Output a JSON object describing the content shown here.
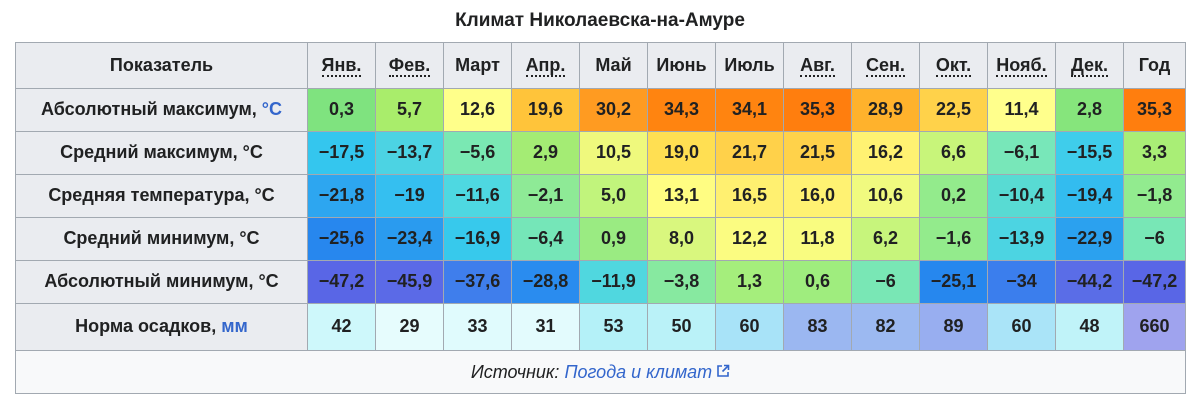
{
  "caption": "Климат Николаевска-на-Амуре",
  "header": {
    "indicator": "Показатель",
    "months": [
      "Янв.",
      "Фев.",
      "Март",
      "Апр.",
      "Май",
      "Июнь",
      "Июль",
      "Авг.",
      "Сен.",
      "Окт.",
      "Нояб.",
      "Дек."
    ],
    "year": "Год"
  },
  "rows": [
    {
      "label": "Абсолютный максимум,",
      "unit": "°C",
      "values": [
        "0,3",
        "5,7",
        "12,6",
        "19,6",
        "30,2",
        "34,3",
        "34,1",
        "35,3",
        "28,9",
        "22,5",
        "11,4",
        "2,8"
      ],
      "year": "35,3",
      "colors": [
        "#7fe37f",
        "#a9ed6b",
        "#ffff8a",
        "#ffc43a",
        "#ff9b21",
        "#ff8410",
        "#ff8410",
        "#ff7e0e",
        "#ffb22c",
        "#ffd24a",
        "#ffff8c",
        "#86e57c"
      ],
      "year_color": "#ff7e0e"
    },
    {
      "label": "Средний максимум, °C",
      "unit": "",
      "values": [
        "−17,5",
        "−13,7",
        "−5,6",
        "2,9",
        "10,5",
        "19,0",
        "21,7",
        "21,5",
        "16,2",
        "6,6",
        "−6,1",
        "−15,5"
      ],
      "year": "3,3",
      "colors": [
        "#34c6ee",
        "#4cd3e3",
        "#7ae8b3",
        "#a4ec74",
        "#eff97d",
        "#ffdf52",
        "#ffd14a",
        "#ffd24a",
        "#fff272",
        "#c8f57a",
        "#78e7b9",
        "#3fcdeb"
      ],
      "year_color": "#a9ee76"
    },
    {
      "label": "Средняя температура, °C",
      "unit": "",
      "values": [
        "−21,8",
        "−19",
        "−11,6",
        "−2,1",
        "5,0",
        "13,1",
        "16,5",
        "16,0",
        "10,6",
        "0,2",
        "−10,4",
        "−19,4"
      ],
      "year": "−1,8",
      "colors": [
        "#2da6f0",
        "#35bff0",
        "#4ed8e1",
        "#8eea96",
        "#c1f47c",
        "#fffd82",
        "#fff070",
        "#fff272",
        "#f0fa7f",
        "#93eb8c",
        "#58dbd3",
        "#33bcef"
      ],
      "year_color": "#92eb8f"
    },
    {
      "label": "Средний минимум, °C",
      "unit": "",
      "values": [
        "−25,6",
        "−23,4",
        "−16,9",
        "−6,4",
        "0,9",
        "8,0",
        "12,2",
        "11,8",
        "6,2",
        "−1,6",
        "−13,9",
        "−22,9"
      ],
      "year": "−6",
      "colors": [
        "#2787ee",
        "#2a9bef",
        "#37c9ec",
        "#75e6b8",
        "#9aeb82",
        "#d9f77e",
        "#fbfc81",
        "#f9fc80",
        "#c7f57c",
        "#93eb8c",
        "#4cd4e2",
        "#2ba1ef"
      ],
      "year_color": "#78e7b6"
    },
    {
      "label": "Абсолютный минимум, °C",
      "unit": "",
      "values": [
        "−47,2",
        "−45,9",
        "−37,6",
        "−28,8",
        "−11,9",
        "−3,8",
        "1,3",
        "0,6",
        "−6",
        "−25,1",
        "−34",
        "−44,2"
      ],
      "year": "−47,2",
      "colors": [
        "#5966e6",
        "#5b6ae7",
        "#3f7eec",
        "#2a8cef",
        "#50d7df",
        "#87e9a0",
        "#a5ee7c",
        "#9fed7e",
        "#79e7b5",
        "#2687ee",
        "#3b7eed",
        "#5a6de7"
      ],
      "year_color": "#5966e6"
    }
  ],
  "precip": {
    "label": "Норма осадков,",
    "unit": "мм",
    "values": [
      "42",
      "29",
      "33",
      "31",
      "53",
      "50",
      "60",
      "83",
      "82",
      "89",
      "60",
      "48"
    ],
    "year": "660",
    "colors": [
      "#cef8fb",
      "#e6fcfd",
      "#e0fbfd",
      "#e3fbfd",
      "#b4f1f8",
      "#baf2f8",
      "#a8e3f8",
      "#9bb7f1",
      "#9cb9f1",
      "#98aef0",
      "#aae4f8",
      "#c0f3f9"
    ],
    "year_color": "#9fa3ee"
  },
  "source": {
    "prefix": "Источник:",
    "link": "Погода и климат"
  }
}
